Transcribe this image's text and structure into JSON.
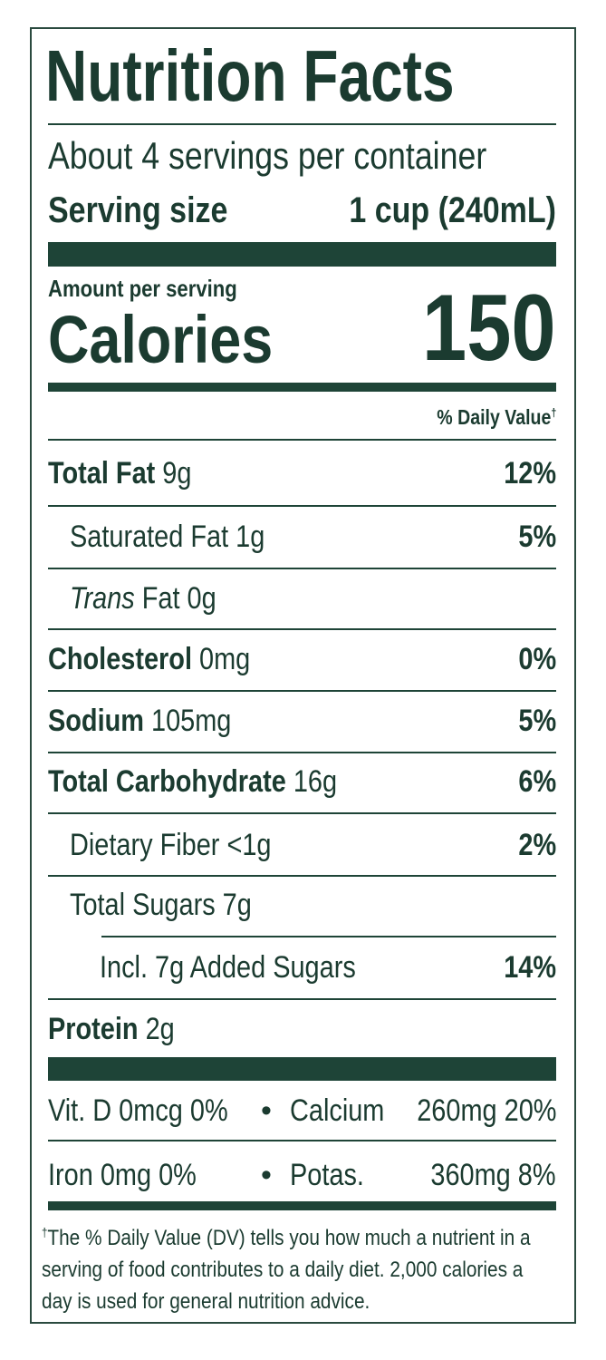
{
  "title": "Nutrition Facts",
  "servings": "About 4 servings per container",
  "serving_size": {
    "label": "Serving size",
    "value": "1 cup (240mL)"
  },
  "amount_per_serving": "Amount per serving",
  "calories": {
    "label": "Calories",
    "value": "150"
  },
  "daily_value_header": {
    "label": "% Daily Value",
    "mark": "†"
  },
  "nutrients": [
    {
      "name": "Total Fat",
      "amount": "9g",
      "dv": "12%"
    },
    {
      "name": "Saturated Fat",
      "amount": "1g",
      "dv": "5%"
    },
    {
      "name_italic": "Trans",
      "name": "Fat",
      "amount": "0g"
    },
    {
      "name": "Cholesterol",
      "amount": "0mg",
      "dv": "0%"
    },
    {
      "name": "Sodium",
      "amount": "105mg",
      "dv": "5%"
    },
    {
      "name": "Total Carbohydrate",
      "amount": "16g",
      "dv": "6%"
    },
    {
      "name": "Dietary Fiber",
      "amount": "<1g",
      "dv": "2%"
    },
    {
      "name": "Total Sugars",
      "amount": "7g"
    },
    {
      "name": "Incl. 7g Added Sugars",
      "dv": "14%"
    },
    {
      "name": "Protein",
      "amount": "2g"
    }
  ],
  "vitamins": [
    [
      {
        "name": "Vit. D",
        "amount": "0mcg",
        "dv": "0%"
      },
      {
        "name": "Calcium",
        "amount": "260mg",
        "dv": "20%"
      }
    ],
    [
      {
        "name": "Iron",
        "amount": "0mg",
        "dv": "0%"
      },
      {
        "name": "Potas.",
        "amount": "360mg",
        "dv": "8%"
      }
    ]
  ],
  "bullet": "•",
  "footnote": {
    "mark": "†",
    "text": "The % Daily Value (DV) tells you how much a nutrient in a serving of food contributes to a daily diet. 2,000 calories a day is used for general nutrition advice."
  }
}
